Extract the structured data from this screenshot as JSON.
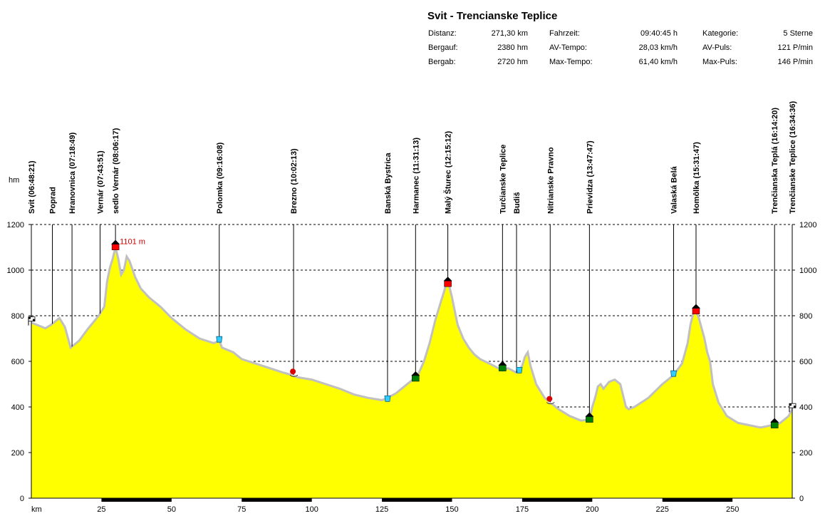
{
  "title": "Svit - Trencianske Teplice",
  "stats": [
    {
      "label": "Distanz:",
      "value": "271,30 km"
    },
    {
      "label": "Bergauf:",
      "value": "2380 hm"
    },
    {
      "label": "Bergab:",
      "value": "2720 hm"
    },
    {
      "label": "Fahrzeit:",
      "value": "09:40:45 h"
    },
    {
      "label": "AV-Tempo:",
      "value": "28,03 km/h"
    },
    {
      "label": "Max-Tempo:",
      "value": "61,40 km/h"
    },
    {
      "label": "Kategorie:",
      "value": "5 Sterne"
    },
    {
      "label": "AV-Puls:",
      "value": "121 P/min"
    },
    {
      "label": "Max-Puls:",
      "value": "146 P/min"
    }
  ],
  "colors": {
    "fill": "#ffff00",
    "outline": "#c0c0c0",
    "peak": "#ff0000",
    "annotation": "#cc0000"
  },
  "chart_data": {
    "type": "area",
    "xlabel": "km",
    "ylabel": "hm",
    "xlim": [
      0,
      271.3
    ],
    "ylim": [
      0,
      1200
    ],
    "xticks": [
      25,
      50,
      75,
      100,
      125,
      150,
      175,
      200,
      225,
      250
    ],
    "yticks": [
      0,
      200,
      400,
      600,
      800,
      1000,
      1200
    ],
    "grid": true,
    "series": [
      {
        "x": [
          0,
          5,
          7,
          10,
          12,
          14,
          17,
          20,
          24,
          25,
          26,
          27,
          28,
          29,
          30,
          31,
          32,
          33,
          34,
          35,
          37,
          39,
          42,
          46,
          50,
          55,
          60,
          65,
          67,
          68,
          72,
          75,
          80,
          85,
          90,
          93,
          95,
          100,
          105,
          110,
          115,
          120,
          125,
          127,
          130,
          133,
          136,
          138,
          140,
          142,
          144,
          146,
          147,
          148,
          149,
          150,
          151,
          152,
          154,
          156,
          158,
          160,
          165,
          168,
          170,
          173,
          175,
          176,
          177,
          178,
          180,
          183,
          185,
          188,
          192,
          196,
          199,
          200,
          201,
          202,
          203,
          204,
          206,
          208,
          210,
          212,
          213,
          215,
          220,
          225,
          229,
          232,
          234,
          235,
          236,
          237,
          238,
          240,
          241,
          242,
          243,
          245,
          248,
          252,
          256,
          260,
          264,
          265,
          267,
          270,
          271.3
        ],
        "y": [
          770,
          745,
          760,
          790,
          750,
          660,
          690,
          740,
          800,
          820,
          840,
          950,
          1010,
          1050,
          1101,
          1050,
          980,
          1000,
          1060,
          1040,
          970,
          920,
          880,
          840,
          790,
          740,
          700,
          680,
          690,
          660,
          640,
          610,
          590,
          570,
          550,
          540,
          530,
          520,
          500,
          480,
          455,
          440,
          430,
          440,
          460,
          490,
          520,
          545,
          600,
          680,
          780,
          860,
          900,
          940,
          930,
          880,
          820,
          760,
          700,
          660,
          630,
          610,
          580,
          560,
          570,
          550,
          580,
          620,
          640,
          580,
          500,
          440,
          420,
          390,
          360,
          340,
          345,
          400,
          440,
          490,
          500,
          480,
          510,
          520,
          500,
          400,
          390,
          400,
          440,
          500,
          540,
          590,
          680,
          760,
          810,
          820,
          790,
          700,
          640,
          600,
          500,
          420,
          360,
          330,
          320,
          310,
          320,
          320,
          330,
          360,
          390
        ]
      }
    ],
    "waypoints": [
      {
        "label": "Svit (06:48:21)",
        "km": 0
      },
      {
        "label": "Poprad",
        "km": 7.5
      },
      {
        "label": "Hranovnica (07:18:49)",
        "km": 14.5
      },
      {
        "label": "Vernár (07:43:51)",
        "km": 24.5
      },
      {
        "label": "sedlo Vernár (08:06:17)",
        "km": 30
      },
      {
        "label": "Polomka (09:16:08)",
        "km": 67
      },
      {
        "label": "Brezno (10:02:13)",
        "km": 93.5
      },
      {
        "label": "Banská Bystrica",
        "km": 127
      },
      {
        "label": "Harmanec (11:31:13)",
        "km": 137
      },
      {
        "label": "Malý Šturec (12:15:12)",
        "km": 148.5
      },
      {
        "label": "Turčianske Teplice",
        "km": 168
      },
      {
        "label": "Budiš",
        "km": 173
      },
      {
        "label": "Nitrianske Pravno",
        "km": 185
      },
      {
        "label": "Prievidza (13:47:47)",
        "km": 199
      },
      {
        "label": "Valaská Belá",
        "km": 229
      },
      {
        "label": "Homôlka (15:31:47)",
        "km": 237
      },
      {
        "label": "Trenčianska Teplá (16:14:20)",
        "km": 265
      },
      {
        "label": "Trenčianske Teplice (16:34:36)",
        "km": 271.3
      }
    ],
    "markers": [
      {
        "km": 0,
        "elev": 770,
        "type": "flag"
      },
      {
        "km": 30,
        "elev": 1101,
        "type": "house-red"
      },
      {
        "km": 67,
        "elev": 690,
        "type": "cup"
      },
      {
        "km": 93.5,
        "elev": 540,
        "type": "food"
      },
      {
        "km": 127,
        "elev": 430,
        "type": "cup"
      },
      {
        "km": 137,
        "elev": 525,
        "type": "house-green"
      },
      {
        "km": 148.5,
        "elev": 940,
        "type": "house-red"
      },
      {
        "km": 168,
        "elev": 570,
        "type": "house-green"
      },
      {
        "km": 174,
        "elev": 555,
        "type": "cup"
      },
      {
        "km": 185,
        "elev": 420,
        "type": "food"
      },
      {
        "km": 199,
        "elev": 345,
        "type": "house-green"
      },
      {
        "km": 229,
        "elev": 540,
        "type": "cup"
      },
      {
        "km": 237,
        "elev": 820,
        "type": "house-red"
      },
      {
        "km": 265,
        "elev": 320,
        "type": "house-green"
      },
      {
        "km": 271.3,
        "elev": 390,
        "type": "flag"
      }
    ],
    "annotations": [
      {
        "text": "1101 m",
        "km": 30,
        "elev": 1101
      }
    ]
  }
}
